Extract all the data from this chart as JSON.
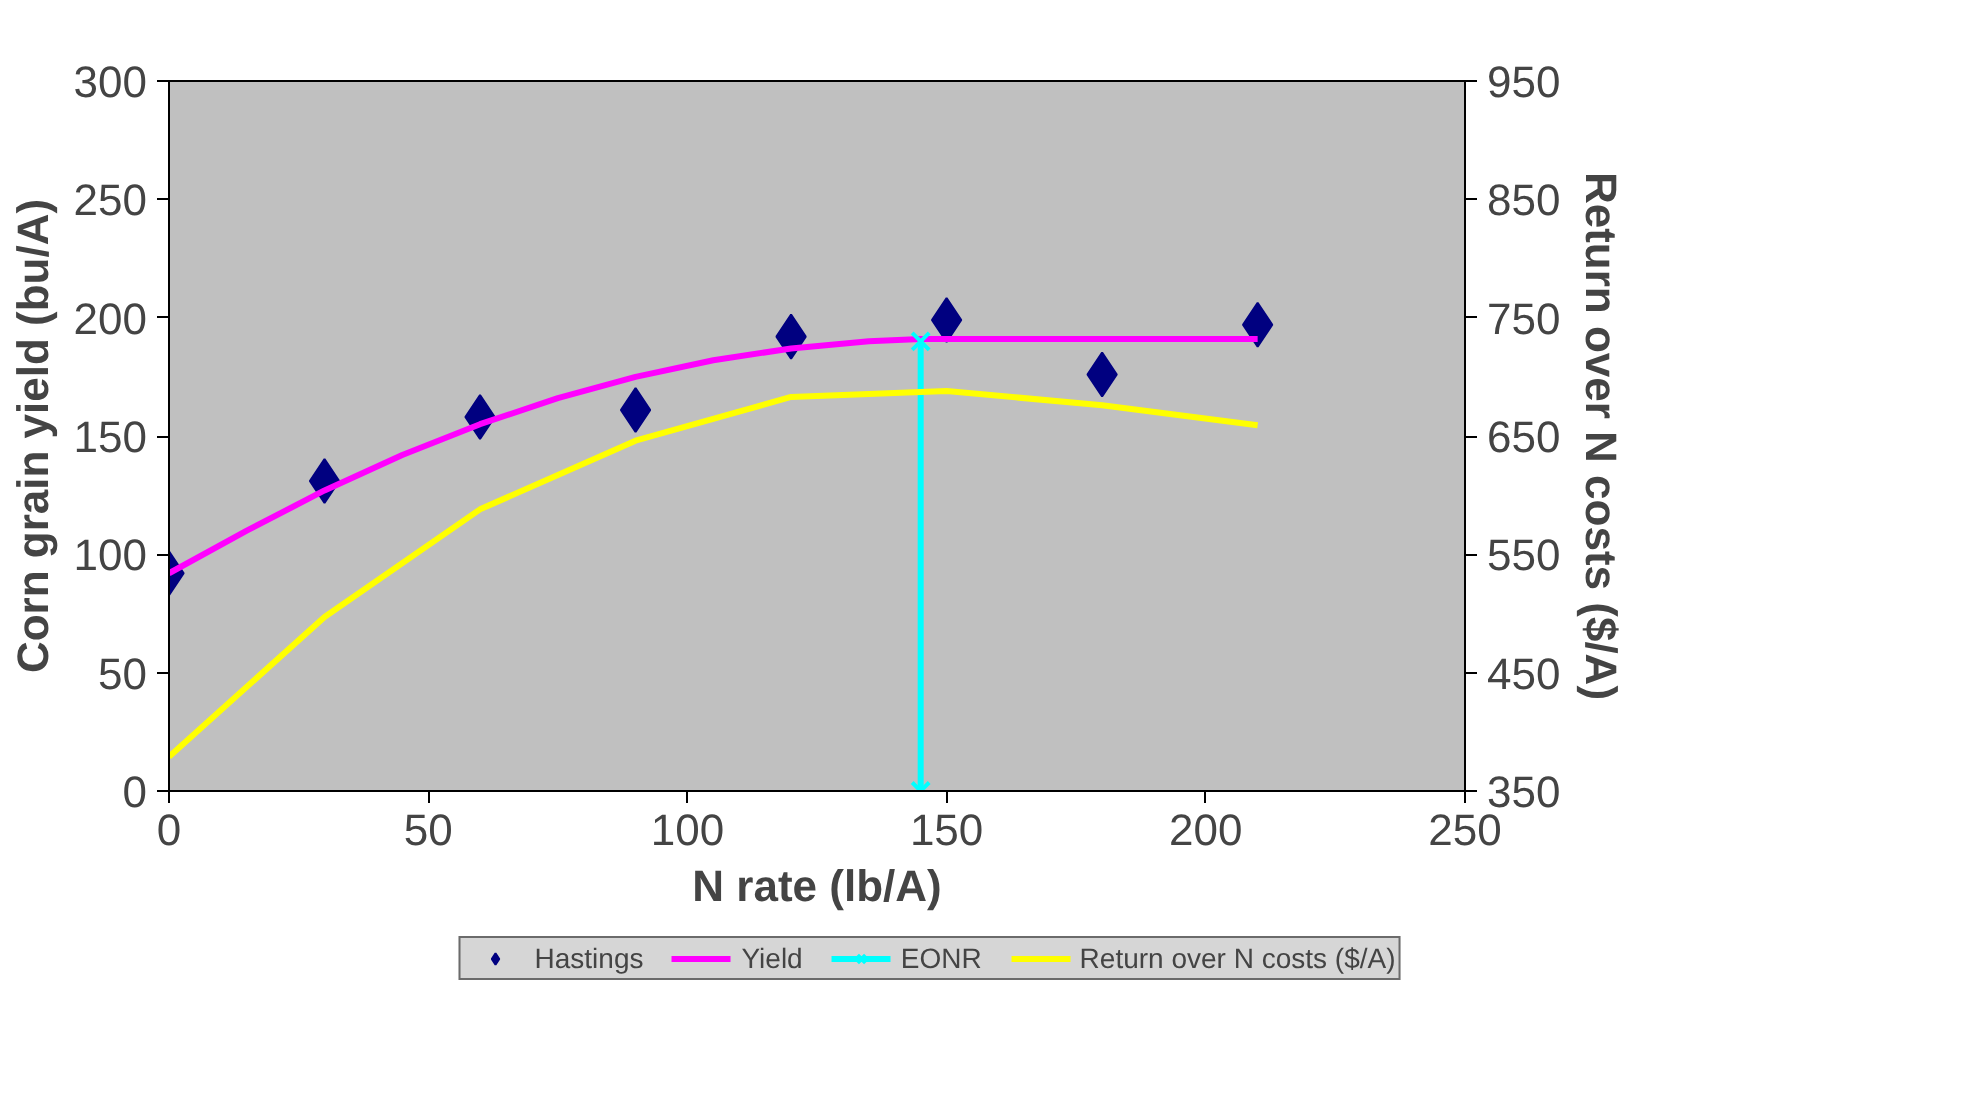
{
  "chart_data": {
    "type": "scatter",
    "xlabel": "N rate (lb/A)",
    "ylabel": "Corn grain yield (bu/A)",
    "y2label": "Return over N costs ($/A)",
    "xlim": [
      0,
      250
    ],
    "xticks": [
      0,
      50,
      100,
      150,
      200,
      250
    ],
    "ylim": [
      0,
      300
    ],
    "yticks": [
      0,
      50,
      100,
      150,
      200,
      250,
      300
    ],
    "y2lim": [
      350,
      950
    ],
    "y2ticks": [
      350,
      450,
      550,
      650,
      750,
      850,
      950
    ],
    "grid": false,
    "legend": "bottom",
    "series": [
      {
        "name": "Hastings",
        "marker": "diamond",
        "color": "#000080",
        "x": [
          0,
          30,
          60,
          90,
          120,
          150,
          180,
          210
        ],
        "values": [
          92,
          131,
          158,
          161,
          192,
          199,
          176,
          197
        ]
      },
      {
        "name": "Yield",
        "type": "line",
        "marker": "none",
        "color": "#ff00ff",
        "x": [
          0,
          15,
          30,
          45,
          60,
          75,
          90,
          105,
          120,
          135,
          145,
          210
        ],
        "values": [
          92,
          110,
          127,
          142,
          155,
          166,
          175,
          182,
          187,
          190,
          191,
          191
        ]
      },
      {
        "name": "EONR",
        "type": "line",
        "marker": "cross",
        "color": "#00ffff",
        "x": [
          145,
          145
        ],
        "values": [
          0,
          190
        ]
      },
      {
        "name": "Return over N costs ($/A)",
        "type": "line",
        "marker": "none",
        "axis": "y2",
        "color": "#ffff00",
        "x": [
          0,
          30,
          60,
          90,
          120,
          150,
          180,
          210
        ],
        "values": [
          379,
          497,
          588,
          646,
          683,
          688,
          676,
          659
        ]
      }
    ]
  }
}
